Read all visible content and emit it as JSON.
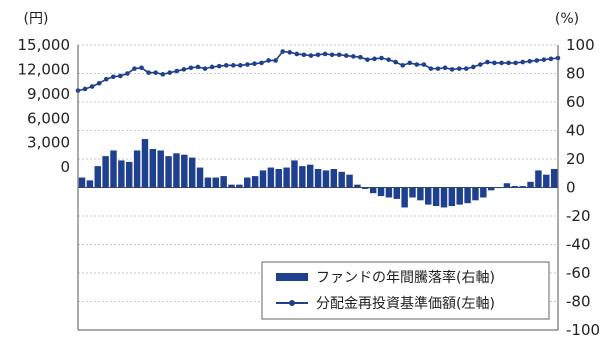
{
  "chart_data": {
    "type": "bar+line",
    "left_axis": {
      "unit_label": "(円)",
      "min": -20000,
      "max": 15000,
      "tick_labels": [
        "15,000",
        "12,000",
        "9,000",
        "6,000",
        "3,000",
        "0"
      ],
      "tick_values": [
        15000,
        12000,
        9000,
        6000,
        3000,
        0
      ]
    },
    "right_axis": {
      "unit_label": "(%)",
      "min": -100,
      "max": 100,
      "tick_labels": [
        "100",
        "80",
        "60",
        "40",
        "20",
        "0",
        "-20",
        "-40",
        "-60",
        "-80",
        "-100"
      ],
      "tick_values": [
        100,
        80,
        60,
        40,
        20,
        0,
        -20,
        -40,
        -60,
        -80,
        -100
      ]
    },
    "grid": true,
    "legend_position": "bottom-right",
    "series": [
      {
        "name": "ファンドの年間騰落率(右軸)",
        "type": "bar",
        "axis": "right",
        "color": "#1f3f8f",
        "values": [
          7,
          5,
          15,
          22,
          26,
          19,
          18,
          26,
          34,
          27,
          26,
          22,
          24,
          23,
          21,
          14,
          7,
          7,
          8,
          2,
          2,
          7,
          8,
          12,
          14,
          13,
          14,
          19,
          15,
          16,
          13,
          12,
          13,
          11,
          9,
          2,
          -1,
          -4,
          -6,
          -7,
          -8,
          -14,
          -7,
          -9,
          -12,
          -13,
          -14,
          -13,
          -12,
          -11,
          -9,
          -7,
          -2,
          0,
          3,
          1,
          1,
          4,
          12,
          9,
          13
        ]
      },
      {
        "name": "分配金再投資基準価額(左軸)",
        "type": "line",
        "axis": "left",
        "color": "#1f3f8f",
        "values": [
          9400,
          9600,
          9900,
          10300,
          10800,
          11100,
          11200,
          11500,
          12100,
          12200,
          11600,
          11600,
          11400,
          11600,
          11800,
          12000,
          12200,
          12300,
          12100,
          12300,
          12400,
          12500,
          12500,
          12500,
          12600,
          12700,
          12800,
          13100,
          13100,
          14200,
          14100,
          13900,
          13800,
          13700,
          13800,
          13900,
          13800,
          13800,
          13700,
          13600,
          13500,
          13200,
          13300,
          13400,
          13200,
          12900,
          12500,
          12800,
          12600,
          12600,
          12100,
          12100,
          12200,
          12000,
          12100,
          12100,
          12300,
          12600,
          12900,
          12800,
          12800,
          12800,
          12800,
          12900,
          13000,
          13100,
          13200,
          13300,
          13400
        ]
      }
    ]
  }
}
